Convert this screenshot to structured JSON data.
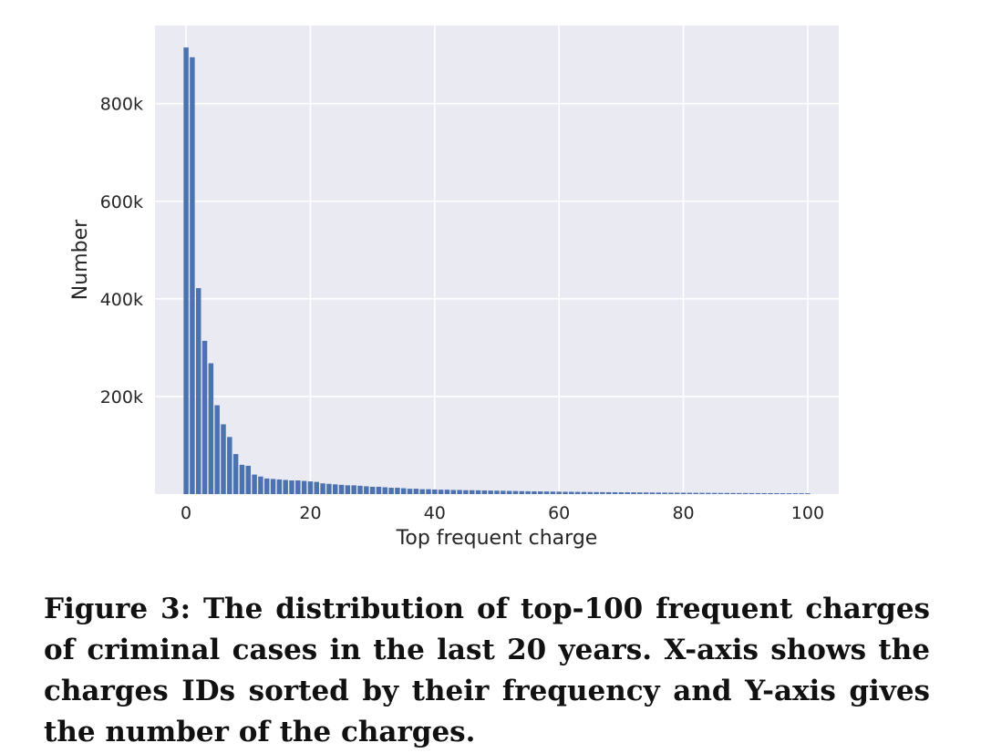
{
  "chart_data": {
    "type": "bar",
    "xlabel": "Top frequent charge",
    "ylabel": "Number",
    "xlim": [
      -5,
      105
    ],
    "ylim": [
      0,
      960000
    ],
    "x_ticks": [
      0,
      20,
      40,
      60,
      80,
      100
    ],
    "x_tick_labels": [
      "0",
      "20",
      "40",
      "60",
      "80",
      "100"
    ],
    "y_ticks": [
      200000,
      400000,
      600000,
      800000
    ],
    "y_tick_labels": [
      "200k",
      "400k",
      "600k",
      "800k"
    ],
    "grid": true,
    "colors": {
      "bar": "#4c72b0",
      "background": "#eaeaf2",
      "grid": "#ffffff"
    },
    "x": [
      0,
      1,
      2,
      3,
      4,
      5,
      6,
      7,
      8,
      9,
      10,
      11,
      12,
      13,
      14,
      15,
      16,
      17,
      18,
      19,
      20,
      21,
      22,
      23,
      24,
      25,
      26,
      27,
      28,
      29,
      30,
      31,
      32,
      33,
      34,
      35,
      36,
      37,
      38,
      39,
      40,
      41,
      42,
      43,
      44,
      45,
      46,
      47,
      48,
      49,
      50,
      51,
      52,
      53,
      54,
      55,
      56,
      57,
      58,
      59,
      60,
      61,
      62,
      63,
      64,
      65,
      66,
      67,
      68,
      69,
      70,
      71,
      72,
      73,
      74,
      75,
      76,
      77,
      78,
      79,
      80,
      81,
      82,
      83,
      84,
      85,
      86,
      87,
      88,
      89,
      90,
      91,
      92,
      93,
      94,
      95,
      96,
      97,
      98,
      99,
      100
    ],
    "values": [
      915000,
      895000,
      422000,
      314000,
      268000,
      182000,
      143000,
      117000,
      82000,
      60000,
      58000,
      40000,
      36000,
      32000,
      31000,
      30000,
      29000,
      28000,
      28000,
      27000,
      26000,
      25000,
      22000,
      21000,
      20000,
      19000,
      18000,
      18000,
      17000,
      16000,
      15000,
      15000,
      14000,
      13000,
      13000,
      12000,
      11000,
      11000,
      10000,
      10000,
      9500,
      9000,
      9000,
      8500,
      8500,
      8000,
      8000,
      7800,
      7500,
      7200,
      7000,
      6800,
      6500,
      6300,
      6000,
      5800,
      5600,
      5500,
      5300,
      5100,
      5000,
      4800,
      4700,
      4500,
      4400,
      4200,
      4100,
      4000,
      3900,
      3800,
      3700,
      3600,
      3500,
      3400,
      3300,
      3200,
      3100,
      3000,
      2900,
      2850,
      2800,
      2700,
      2600,
      2550,
      2500,
      2400,
      2350,
      2300,
      2200,
      2150,
      2100,
      2050,
      2000,
      1950,
      1900,
      1850,
      1800,
      1750,
      1700,
      1650,
      1600
    ]
  },
  "caption": "Figure 3: The distribution of top-100 frequent charges of criminal cases in the last 20 years. X-axis shows the charges IDs sorted by their frequency and Y-axis gives the number of the charges."
}
